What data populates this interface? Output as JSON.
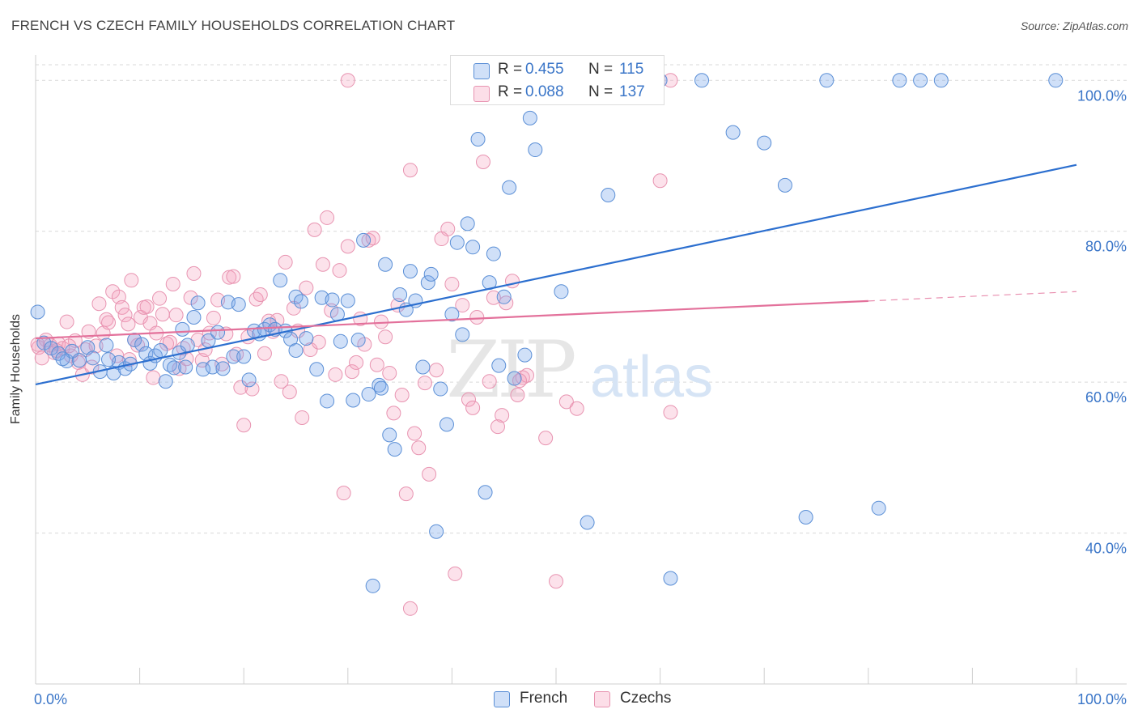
{
  "title": "FRENCH VS CZECH FAMILY HOUSEHOLDS CORRELATION CHART",
  "source_label": "Source: ZipAtlas.com",
  "watermark": {
    "zip": "ZIP",
    "atlas": "atlas"
  },
  "colors": {
    "french_fill": "rgba(120,165,235,0.35)",
    "french_stroke": "#5b8fd6",
    "french_line": "#2c6fcf",
    "czech_fill": "rgba(245,160,190,0.30)",
    "czech_stroke": "#e894b1",
    "czech_line": "#e3719b",
    "axis_text": "#3b76c8",
    "grid": "#d9d9d9"
  },
  "legend": {
    "rows": [
      {
        "r_label": "R =",
        "r_value": "0.455",
        "n_label": "N =",
        "n_value": "115"
      },
      {
        "r_label": "R =",
        "r_value": "0.088",
        "n_label": "N =",
        "n_value": "137"
      }
    ]
  },
  "bottom_legend": {
    "french": "French",
    "czechs": "Czechs"
  },
  "chart_data": {
    "type": "scatter",
    "title": "FRENCH VS CZECH FAMILY HOUSEHOLDS CORRELATION CHART",
    "xlabel": "",
    "ylabel": "Family Households",
    "xlim": [
      0,
      100
    ],
    "ylim": [
      20,
      104
    ],
    "x_tick_labels": [
      "0.0%",
      "100.0%"
    ],
    "y_ticks": [
      40,
      60,
      80,
      100
    ],
    "y_tick_labels": [
      "40.0%",
      "60.0%",
      "80.0%",
      "100.0%"
    ],
    "grid": true,
    "legend_position": "top-center",
    "series": [
      {
        "name": "French",
        "r": 0.455,
        "n": 115,
        "trend": {
          "x0": 0,
          "y0": 59.7,
          "x1": 100,
          "y1": 88.8
        },
        "points": [
          [
            0.2,
            69.3
          ],
          [
            0.8,
            65.2
          ],
          [
            1.5,
            64.5
          ],
          [
            2.2,
            63.8
          ],
          [
            3.0,
            62.8
          ],
          [
            3.5,
            64.1
          ],
          [
            4.2,
            62.9
          ],
          [
            5.0,
            64.6
          ],
          [
            5.5,
            63.2
          ],
          [
            6.2,
            61.4
          ],
          [
            6.8,
            64.9
          ],
          [
            7.5,
            61.2
          ],
          [
            8.0,
            62.6
          ],
          [
            8.6,
            61.8
          ],
          [
            9.1,
            62.4
          ],
          [
            9.5,
            65.6
          ],
          [
            10.2,
            65.0
          ],
          [
            10.6,
            63.8
          ],
          [
            11.0,
            62.5
          ],
          [
            11.5,
            63.5
          ],
          [
            12.0,
            64.2
          ],
          [
            12.5,
            60.1
          ],
          [
            12.9,
            62.3
          ],
          [
            13.3,
            61.9
          ],
          [
            13.8,
            63.9
          ],
          [
            14.1,
            67.0
          ],
          [
            14.6,
            64.9
          ],
          [
            15.2,
            68.6
          ],
          [
            15.6,
            70.5
          ],
          [
            16.1,
            61.7
          ],
          [
            16.6,
            65.5
          ],
          [
            17.0,
            62.0
          ],
          [
            17.5,
            66.6
          ],
          [
            18.0,
            61.8
          ],
          [
            18.5,
            70.6
          ],
          [
            19.0,
            63.4
          ],
          [
            19.5,
            70.3
          ],
          [
            20.0,
            63.4
          ],
          [
            20.5,
            60.3
          ],
          [
            21.0,
            66.8
          ],
          [
            21.5,
            66.4
          ],
          [
            22.0,
            67.0
          ],
          [
            22.5,
            67.6
          ],
          [
            23.0,
            67.0
          ],
          [
            23.5,
            73.5
          ],
          [
            24.0,
            66.8
          ],
          [
            24.5,
            65.7
          ],
          [
            25.0,
            71.3
          ],
          [
            25.5,
            70.7
          ],
          [
            26.0,
            65.8
          ],
          [
            27.0,
            61.7
          ],
          [
            27.5,
            71.2
          ],
          [
            28.0,
            57.5
          ],
          [
            28.5,
            70.9
          ],
          [
            29.0,
            69.0
          ],
          [
            29.3,
            65.4
          ],
          [
            30.0,
            70.8
          ],
          [
            30.5,
            57.6
          ],
          [
            31.0,
            65.6
          ],
          [
            31.5,
            78.8
          ],
          [
            32.0,
            58.4
          ],
          [
            32.4,
            33.0
          ],
          [
            33.0,
            59.6
          ],
          [
            33.6,
            75.6
          ],
          [
            34.0,
            53.0
          ],
          [
            34.5,
            51.1
          ],
          [
            35.0,
            71.6
          ],
          [
            35.6,
            69.6
          ],
          [
            36.0,
            74.7
          ],
          [
            36.5,
            70.8
          ],
          [
            37.2,
            62.0
          ],
          [
            37.7,
            73.2
          ],
          [
            38.0,
            74.3
          ],
          [
            38.5,
            40.2
          ],
          [
            38.9,
            59.1
          ],
          [
            39.5,
            54.4
          ],
          [
            40.0,
            69.0
          ],
          [
            40.5,
            78.5
          ],
          [
            41.0,
            66.3
          ],
          [
            41.5,
            81.0
          ],
          [
            42.0,
            77.9
          ],
          [
            42.5,
            92.2
          ],
          [
            43.2,
            45.4
          ],
          [
            43.6,
            73.2
          ],
          [
            44.0,
            77.0
          ],
          [
            44.5,
            62.2
          ],
          [
            45.0,
            71.3
          ],
          [
            45.5,
            85.8
          ],
          [
            46.0,
            60.5
          ],
          [
            47.0,
            63.6
          ],
          [
            47.5,
            95.0
          ],
          [
            48.0,
            90.8
          ],
          [
            49.8,
            100.0
          ],
          [
            50.5,
            72.0
          ],
          [
            52.5,
            100.0
          ],
          [
            53.0,
            41.4
          ],
          [
            55.0,
            84.8
          ],
          [
            60.0,
            100.0
          ],
          [
            61.0,
            34.0
          ],
          [
            64.0,
            100.0
          ],
          [
            67.0,
            93.1
          ],
          [
            70.0,
            91.7
          ],
          [
            72.0,
            86.1
          ],
          [
            74.0,
            42.1
          ],
          [
            76.0,
            100.0
          ],
          [
            81.0,
            43.3
          ],
          [
            83.0,
            100.0
          ],
          [
            85.0,
            100.0
          ],
          [
            87.0,
            100.0
          ],
          [
            98.0,
            100.0
          ],
          [
            2.6,
            63.1
          ],
          [
            7.0,
            63.0
          ],
          [
            14.4,
            62.0
          ],
          [
            25.0,
            64.2
          ],
          [
            33.2,
            59.2
          ]
        ]
      },
      {
        "name": "Czechs",
        "r": 0.088,
        "n": 137,
        "trend": {
          "x0": 0,
          "y0": 65.8,
          "x1": 100,
          "y1": 72.0
        },
        "trend_solid_until": 80,
        "points": [
          [
            0.3,
            64.6
          ],
          [
            0.6,
            63.2
          ],
          [
            1.0,
            65.6
          ],
          [
            1.4,
            64.9
          ],
          [
            1.8,
            63.9
          ],
          [
            2.2,
            65.1
          ],
          [
            2.6,
            64.5
          ],
          [
            3.0,
            68.0
          ],
          [
            3.4,
            63.5
          ],
          [
            3.8,
            65.5
          ],
          [
            4.1,
            62.6
          ],
          [
            4.5,
            61.0
          ],
          [
            4.8,
            64.3
          ],
          [
            5.1,
            66.7
          ],
          [
            5.4,
            62.0
          ],
          [
            5.8,
            64.8
          ],
          [
            6.1,
            70.4
          ],
          [
            6.5,
            66.5
          ],
          [
            6.8,
            68.3
          ],
          [
            7.0,
            67.9
          ],
          [
            7.4,
            72.0
          ],
          [
            7.8,
            63.5
          ],
          [
            8.0,
            71.3
          ],
          [
            8.3,
            69.9
          ],
          [
            8.6,
            68.9
          ],
          [
            8.9,
            67.7
          ],
          [
            9.2,
            73.5
          ],
          [
            9.5,
            65.6
          ],
          [
            9.8,
            64.9
          ],
          [
            10.1,
            68.6
          ],
          [
            10.4,
            69.9
          ],
          [
            10.7,
            70.0
          ],
          [
            11.0,
            67.8
          ],
          [
            11.3,
            60.6
          ],
          [
            11.6,
            66.5
          ],
          [
            11.9,
            71.1
          ],
          [
            12.2,
            69.0
          ],
          [
            12.6,
            65.1
          ],
          [
            12.9,
            65.3
          ],
          [
            13.2,
            73.0
          ],
          [
            13.5,
            68.9
          ],
          [
            13.8,
            61.8
          ],
          [
            14.2,
            64.5
          ],
          [
            14.5,
            63.1
          ],
          [
            14.9,
            71.2
          ],
          [
            15.2,
            74.4
          ],
          [
            15.6,
            65.6
          ],
          [
            16.0,
            62.9
          ],
          [
            16.3,
            64.3
          ],
          [
            16.7,
            66.5
          ],
          [
            17.1,
            68.5
          ],
          [
            17.5,
            70.9
          ],
          [
            17.9,
            62.4
          ],
          [
            18.3,
            66.4
          ],
          [
            18.6,
            73.9
          ],
          [
            19.0,
            74.0
          ],
          [
            19.3,
            63.7
          ],
          [
            19.7,
            59.3
          ],
          [
            20.0,
            54.3
          ],
          [
            20.4,
            66.0
          ],
          [
            20.8,
            59.1
          ],
          [
            21.2,
            71.0
          ],
          [
            21.6,
            71.6
          ],
          [
            22.0,
            63.8
          ],
          [
            22.4,
            68.1
          ],
          [
            22.8,
            66.7
          ],
          [
            23.2,
            68.2
          ],
          [
            23.6,
            60.1
          ],
          [
            24.0,
            75.9
          ],
          [
            24.4,
            58.7
          ],
          [
            24.8,
            69.8
          ],
          [
            25.2,
            66.8
          ],
          [
            25.6,
            55.3
          ],
          [
            26.0,
            72.5
          ],
          [
            26.4,
            64.3
          ],
          [
            26.8,
            80.2
          ],
          [
            27.2,
            65.3
          ],
          [
            27.6,
            75.6
          ],
          [
            28.0,
            81.8
          ],
          [
            28.4,
            69.5
          ],
          [
            28.8,
            61.0
          ],
          [
            29.2,
            74.8
          ],
          [
            29.6,
            45.3
          ],
          [
            30.0,
            78.0
          ],
          [
            30.4,
            61.4
          ],
          [
            30.8,
            62.6
          ],
          [
            31.2,
            68.4
          ],
          [
            31.6,
            65.0
          ],
          [
            32.0,
            78.8
          ],
          [
            32.4,
            79.1
          ],
          [
            32.8,
            62.3
          ],
          [
            33.2,
            68.0
          ],
          [
            33.6,
            66.0
          ],
          [
            34.0,
            61.2
          ],
          [
            34.4,
            55.9
          ],
          [
            34.8,
            70.2
          ],
          [
            35.2,
            58.3
          ],
          [
            35.6,
            45.2
          ],
          [
            36.0,
            88.1
          ],
          [
            36.4,
            53.2
          ],
          [
            36.8,
            51.3
          ],
          [
            37.4,
            59.9
          ],
          [
            37.8,
            47.8
          ],
          [
            38.5,
            61.6
          ],
          [
            39.0,
            79.0
          ],
          [
            39.6,
            80.3
          ],
          [
            40.0,
            73.0
          ],
          [
            40.3,
            34.6
          ],
          [
            41.0,
            70.2
          ],
          [
            41.6,
            57.7
          ],
          [
            42.0,
            56.6
          ],
          [
            42.4,
            68.6
          ],
          [
            43.0,
            89.2
          ],
          [
            43.6,
            60.1
          ],
          [
            44.0,
            71.2
          ],
          [
            44.4,
            54.1
          ],
          [
            44.8,
            55.6
          ],
          [
            45.2,
            70.5
          ],
          [
            45.8,
            73.4
          ],
          [
            46.3,
            58.3
          ],
          [
            46.8,
            60.6
          ],
          [
            47.2,
            60.9
          ],
          [
            48.0,
            100.0
          ],
          [
            49.0,
            52.6
          ],
          [
            50.0,
            33.6
          ],
          [
            51.0,
            57.4
          ],
          [
            52.0,
            56.5
          ],
          [
            60.0,
            86.7
          ],
          [
            61.0,
            100.0
          ],
          [
            30.0,
            100.0
          ],
          [
            46.5,
            60.2
          ],
          [
            36.0,
            30.0
          ],
          [
            61.0,
            56.0
          ],
          [
            0.2,
            65.0
          ],
          [
            2.0,
            64.2
          ],
          [
            3.2,
            64.8
          ],
          [
            9.0,
            63.0
          ]
        ]
      }
    ]
  }
}
